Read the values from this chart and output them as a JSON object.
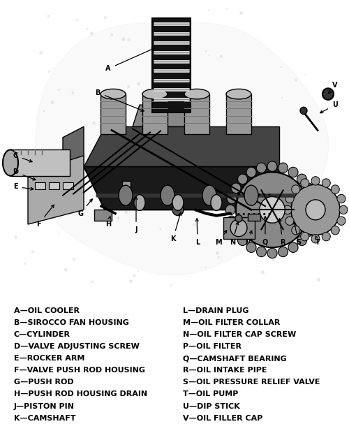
{
  "title": "",
  "background_color": "#ffffff",
  "legend_left": [
    [
      "A",
      "OIL COOLER"
    ],
    [
      "B",
      "SIROCCO FAN HOUSING"
    ],
    [
      "C",
      "CYLINDER"
    ],
    [
      "D",
      "VALVE ADJUSTING SCREW"
    ],
    [
      "E",
      "ROCKER ARM"
    ],
    [
      "F",
      "VALVE PUSH ROD HOUSING"
    ],
    [
      "G",
      "PUSH ROD"
    ],
    [
      "H",
      "PUSH ROD HOUSING DRAIN"
    ],
    [
      "J",
      "PISTON PIN"
    ],
    [
      "K",
      "CAMSHAFT"
    ]
  ],
  "legend_right": [
    [
      "L",
      "DRAIN PLUG"
    ],
    [
      "M",
      "OIL FILTER COLLAR"
    ],
    [
      "N",
      "OIL FILTER CAP SCREW"
    ],
    [
      "P",
      "OIL FILTER"
    ],
    [
      "Q",
      "CAMSHAFT BEARING"
    ],
    [
      "R",
      "OIL INTAKE PIPE"
    ],
    [
      "S",
      "OIL PRESSURE RELIEF VALVE"
    ],
    [
      "T",
      "OIL PUMP"
    ],
    [
      "U",
      "DIP STICK"
    ],
    [
      "V",
      "OIL FILLER CAP"
    ]
  ],
  "fig_width": 5.0,
  "fig_height": 6.17,
  "dpi": 100,
  "font_size": 8.0,
  "label_font_size": 7.0
}
